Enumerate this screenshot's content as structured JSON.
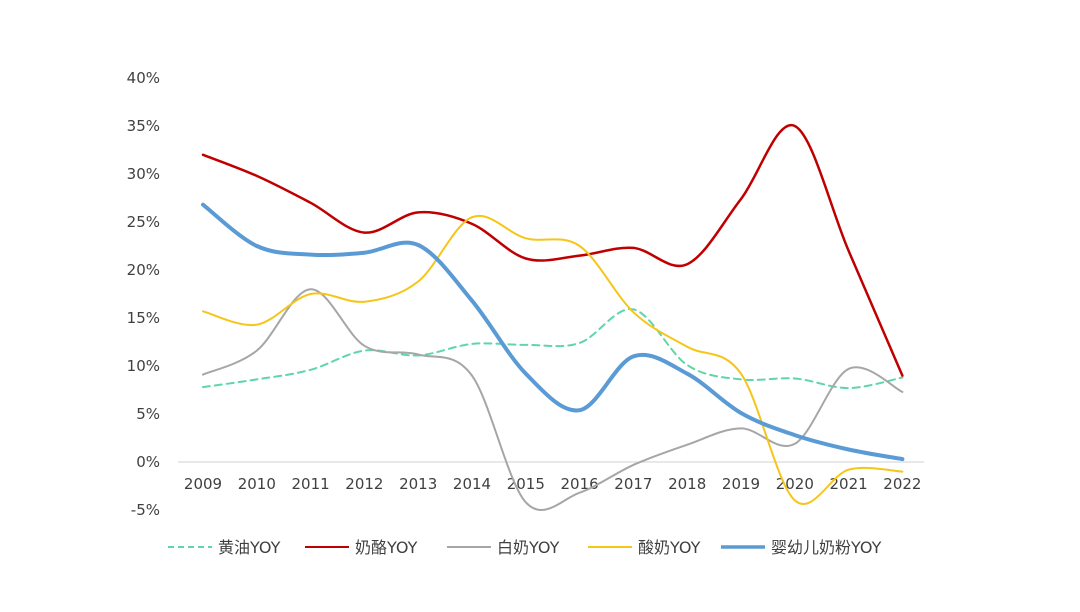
{
  "chart_data": {
    "type": "line",
    "title": "",
    "xlabel": "",
    "ylabel": "",
    "x": [
      "2009",
      "2010",
      "2011",
      "2012",
      "2013",
      "2014",
      "2015",
      "2016",
      "2017",
      "2018",
      "2019",
      "2020",
      "2021",
      "2022"
    ],
    "ylim": [
      -5,
      40
    ],
    "yticks": [
      -5,
      0,
      5,
      10,
      15,
      20,
      25,
      30,
      35,
      40
    ],
    "ytick_labels": [
      "-5%",
      "0%",
      "5%",
      "10%",
      "15%",
      "20%",
      "25%",
      "30%",
      "35%",
      "40%"
    ],
    "grid": false,
    "legend_position": "bottom",
    "series": [
      {
        "name": "黄油YOY",
        "color": "#5fd6a8",
        "style": "dashed",
        "width": 2,
        "values": [
          7.8,
          8.6,
          9.6,
          11.6,
          11.1,
          12.3,
          12.2,
          12.4,
          15.9,
          10.1,
          8.6,
          8.7,
          7.7,
          8.8
        ]
      },
      {
        "name": "奶酪YOY",
        "color": "#c00000",
        "style": "solid",
        "width": 2.5,
        "values": [
          32.0,
          29.8,
          27.0,
          23.9,
          26.0,
          24.8,
          21.2,
          21.5,
          22.3,
          20.6,
          27.4,
          35.0,
          22.0,
          9.0
        ]
      },
      {
        "name": "白奶YOY",
        "color": "#a6a6a6",
        "style": "solid",
        "width": 2,
        "values": [
          9.1,
          11.6,
          18.0,
          12.1,
          11.2,
          9.0,
          -4.2,
          -3.2,
          -0.3,
          1.8,
          3.5,
          1.9,
          9.7,
          7.3
        ]
      },
      {
        "name": "酸奶YOY",
        "color": "#f5c518",
        "style": "solid",
        "width": 2,
        "values": [
          15.7,
          14.3,
          17.5,
          16.7,
          18.8,
          25.5,
          23.3,
          22.5,
          15.6,
          12.0,
          9.2,
          -4.0,
          -0.8,
          -1.0
        ]
      },
      {
        "name": "婴幼儿奶粉YOY",
        "color": "#5b9bd5",
        "style": "solid",
        "width": 4,
        "values": [
          26.8,
          22.5,
          21.6,
          21.8,
          22.6,
          16.8,
          9.2,
          5.4,
          11.0,
          9.2,
          5.1,
          2.8,
          1.3,
          0.3
        ]
      }
    ]
  }
}
